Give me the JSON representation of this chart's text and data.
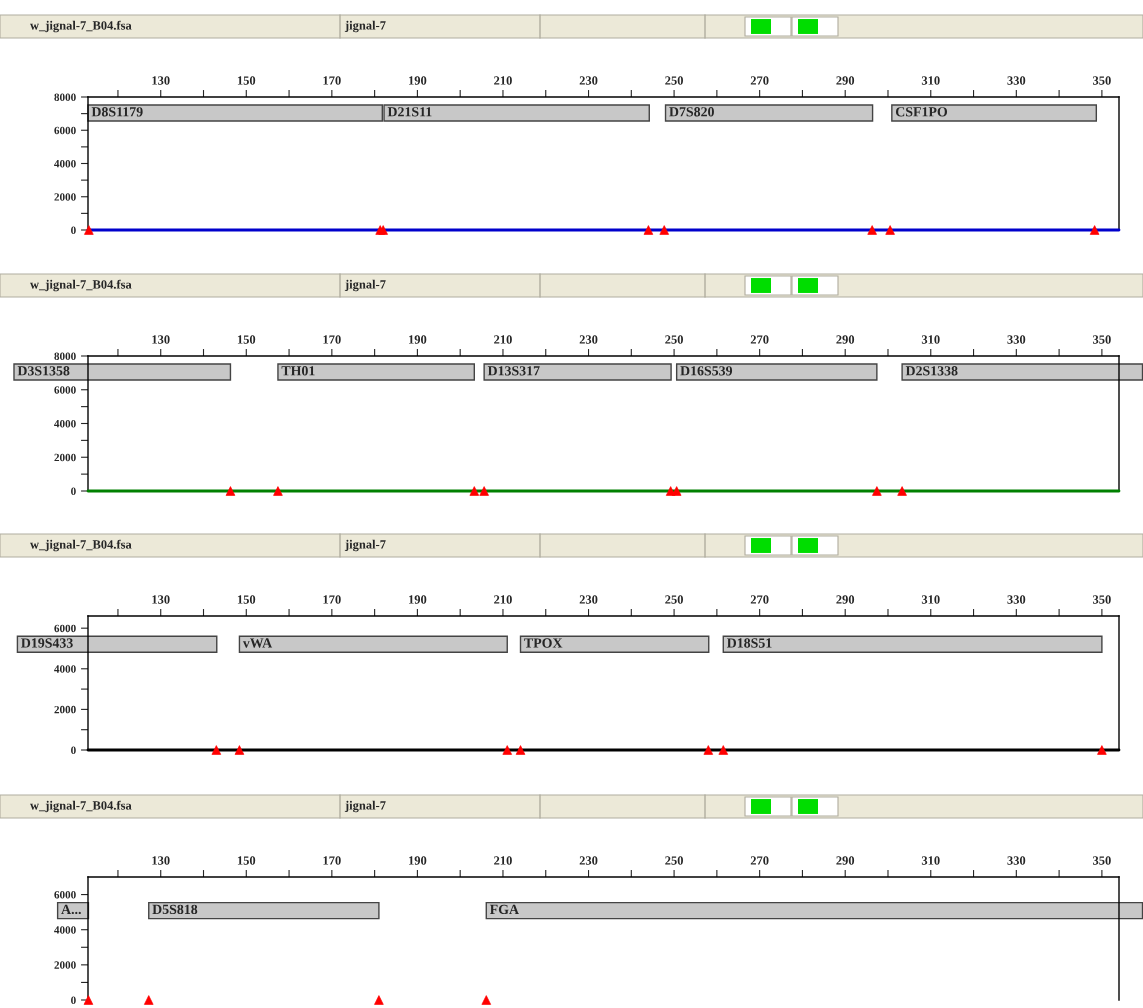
{
  "chart_data": [
    {
      "type": "line",
      "title": "w_jignal-7_B04.fsa",
      "subtitle": "jignal-7",
      "xlim": [
        113,
        354
      ],
      "xticks": [
        {
          "value": 120,
          "label": null
        },
        130,
        {
          "value": 140,
          "label": null
        },
        150,
        {
          "value": 160,
          "label": null
        },
        170,
        {
          "value": 180,
          "label": null
        },
        190,
        {
          "value": 200,
          "label": null
        },
        210,
        {
          "value": 220,
          "label": null
        },
        230,
        {
          "value": 240,
          "label": null
        },
        250,
        {
          "value": 260,
          "label": null
        },
        270,
        {
          "value": 280,
          "label": null
        },
        290,
        {
          "value": 300,
          "label": null
        },
        310,
        {
          "value": 320,
          "label": null
        },
        330,
        {
          "value": 340,
          "label": null
        },
        350
      ],
      "ylim": [
        0,
        8000
      ],
      "yticks": [
        0,
        {
          "value": 1000,
          "label": null
        },
        2000,
        {
          "value": 3000,
          "label": null
        },
        4000,
        {
          "value": 5000,
          "label": null
        },
        6000,
        {
          "value": 7000,
          "label": null
        },
        8000
      ],
      "series": [
        {
          "type": "line",
          "color": "#0000cc",
          "x": [
            113,
            354
          ],
          "values": [
            0,
            0
          ]
        },
        {
          "type": "scatter",
          "color": "#ff0000",
          "marker": "triangle",
          "x": [
            113.2,
            181.3,
            182.0,
            244.0,
            247.7,
            296.3,
            300.5,
            348.3
          ],
          "values": [
            0,
            0,
            0,
            0,
            0,
            0,
            0,
            0
          ]
        }
      ],
      "bands": [
        {
          "axis": "x",
          "from": 113,
          "to": 181.8,
          "label": "D8S1179",
          "color": "#c8c8c8"
        },
        {
          "axis": "x",
          "from": 182.2,
          "to": 244.2,
          "label": "D21S11",
          "color": "#c8c8c8"
        },
        {
          "axis": "x",
          "from": 248.0,
          "to": 296.4,
          "label": "D7S820",
          "color": "#c8c8c8"
        },
        {
          "axis": "x",
          "from": 300.9,
          "to": 348.7,
          "label": "CSF1PO",
          "color": "#c8c8c8"
        }
      ]
    },
    {
      "type": "line",
      "title": "w_jignal-7_B04.fsa",
      "subtitle": "jignal-7",
      "xlim": [
        113,
        354
      ],
      "xticks": [
        {
          "value": 120,
          "label": null
        },
        130,
        {
          "value": 140,
          "label": null
        },
        150,
        {
          "value": 160,
          "label": null
        },
        170,
        {
          "value": 180,
          "label": null
        },
        190,
        {
          "value": 200,
          "label": null
        },
        210,
        {
          "value": 220,
          "label": null
        },
        230,
        {
          "value": 240,
          "label": null
        },
        250,
        {
          "value": 260,
          "label": null
        },
        270,
        {
          "value": 280,
          "label": null
        },
        290,
        {
          "value": 300,
          "label": null
        },
        310,
        {
          "value": 320,
          "label": null
        },
        330,
        {
          "value": 340,
          "label": null
        },
        350
      ],
      "ylim": [
        0,
        8000
      ],
      "yticks": [
        0,
        {
          "value": 1000,
          "label": null
        },
        2000,
        {
          "value": 3000,
          "label": null
        },
        4000,
        {
          "value": 5000,
          "label": null
        },
        6000,
        {
          "value": 7000,
          "label": null
        },
        8000
      ],
      "series": [
        {
          "type": "line",
          "color": "#008000",
          "x": [
            113,
            354
          ],
          "values": [
            0,
            0
          ]
        },
        {
          "type": "scatter",
          "color": "#ff0000",
          "marker": "triangle",
          "x": [
            146.3,
            157.4,
            203.3,
            205.6,
            249.2,
            250.6,
            297.4,
            303.3
          ],
          "values": [
            0,
            0,
            0,
            0,
            0,
            0,
            0,
            0
          ]
        }
      ],
      "bands": [
        {
          "axis": "x",
          "from": 95.7,
          "to": 146.3,
          "label": "D3S1358",
          "color": "#c8c8c8"
        },
        {
          "axis": "x",
          "from": 157.4,
          "to": 203.3,
          "label": "TH01",
          "color": "#c8c8c8"
        },
        {
          "axis": "x",
          "from": 205.6,
          "to": 249.3,
          "label": "D13S317",
          "color": "#c8c8c8"
        },
        {
          "axis": "x",
          "from": 250.6,
          "to": 297.4,
          "label": "D16S539",
          "color": "#c8c8c8"
        },
        {
          "axis": "x",
          "from": 303.3,
          "to": 359.5,
          "label": "D2S1338",
          "color": "#c8c8c8"
        }
      ]
    },
    {
      "type": "line",
      "title": "w_jignal-7_B04.fsa",
      "subtitle": "jignal-7",
      "xlim": [
        113,
        354
      ],
      "xticks": [
        {
          "value": 120,
          "label": null
        },
        130,
        {
          "value": 140,
          "label": null
        },
        150,
        {
          "value": 160,
          "label": null
        },
        170,
        {
          "value": 180,
          "label": null
        },
        190,
        {
          "value": 200,
          "label": null
        },
        210,
        {
          "value": 220,
          "label": null
        },
        230,
        {
          "value": 240,
          "label": null
        },
        250,
        {
          "value": 260,
          "label": null
        },
        270,
        {
          "value": 280,
          "label": null
        },
        290,
        {
          "value": 300,
          "label": null
        },
        310,
        {
          "value": 320,
          "label": null
        },
        330,
        {
          "value": 340,
          "label": null
        },
        350
      ],
      "ylim": [
        0,
        6600
      ],
      "yticks": [
        0,
        {
          "value": 1000,
          "label": null
        },
        2000,
        {
          "value": 3000,
          "label": null
        },
        4000,
        {
          "value": 5000,
          "label": null
        },
        6000
      ],
      "series": [
        {
          "type": "line",
          "color": "#000000",
          "x": [
            113,
            354
          ],
          "values": [
            0,
            0
          ]
        },
        {
          "type": "scatter",
          "color": "#ff0000",
          "marker": "triangle",
          "x": [
            143.0,
            148.4,
            211.0,
            214.1,
            258.0,
            261.5,
            350.0
          ],
          "values": [
            0,
            0,
            0,
            0,
            0,
            0,
            0
          ]
        }
      ],
      "bands": [
        {
          "axis": "x",
          "from": 96.5,
          "to": 143.1,
          "label": "D19S433",
          "color": "#c8c8c8"
        },
        {
          "axis": "x",
          "from": 148.4,
          "to": 211.0,
          "label": "vWA",
          "color": "#c8c8c8"
        },
        {
          "axis": "x",
          "from": 214.1,
          "to": 258.1,
          "label": "TPOX",
          "color": "#c8c8c8"
        },
        {
          "axis": "x",
          "from": 261.5,
          "to": 350,
          "label": "D18S51",
          "color": "#c8c8c8"
        }
      ]
    },
    {
      "type": "line",
      "title": "w_jignal-7_B04.fsa",
      "subtitle": "jignal-7",
      "xlim": [
        113,
        354
      ],
      "xticks": [
        {
          "value": 120,
          "label": null
        },
        130,
        {
          "value": 140,
          "label": null
        },
        150,
        {
          "value": 160,
          "label": null
        },
        170,
        {
          "value": 180,
          "label": null
        },
        190,
        {
          "value": 200,
          "label": null
        },
        210,
        {
          "value": 220,
          "label": null
        },
        230,
        {
          "value": 240,
          "label": null
        },
        250,
        {
          "value": 260,
          "label": null
        },
        270,
        {
          "value": 280,
          "label": null
        },
        290,
        {
          "value": 300,
          "label": null
        },
        310,
        {
          "value": 320,
          "label": null
        },
        330,
        {
          "value": 340,
          "label": null
        },
        350
      ],
      "ylim": [
        0,
        7000
      ],
      "yticks": [
        0,
        {
          "value": 1000,
          "label": null
        },
        2000,
        {
          "value": 3000,
          "label": null
        },
        4000,
        {
          "value": 5000,
          "label": null
        },
        6000
      ],
      "series": [
        {
          "type": "scatter",
          "color": "#ff0000",
          "marker": "triangle",
          "x": [
            113.1,
            127.2,
            181.0,
            206.1
          ],
          "values": [
            0,
            0,
            0,
            0
          ]
        }
      ],
      "bands": [
        {
          "axis": "x",
          "from": 105.9,
          "to": 113.1,
          "label": "A...",
          "color": "#c8c8c8"
        },
        {
          "axis": "x",
          "from": 127.2,
          "to": 181.0,
          "label": "D5S818",
          "color": "#c8c8c8"
        },
        {
          "axis": "x",
          "from": 206.1,
          "to": 359.5,
          "label": "FGA",
          "color": "#c8c8c8"
        }
      ]
    }
  ]
}
